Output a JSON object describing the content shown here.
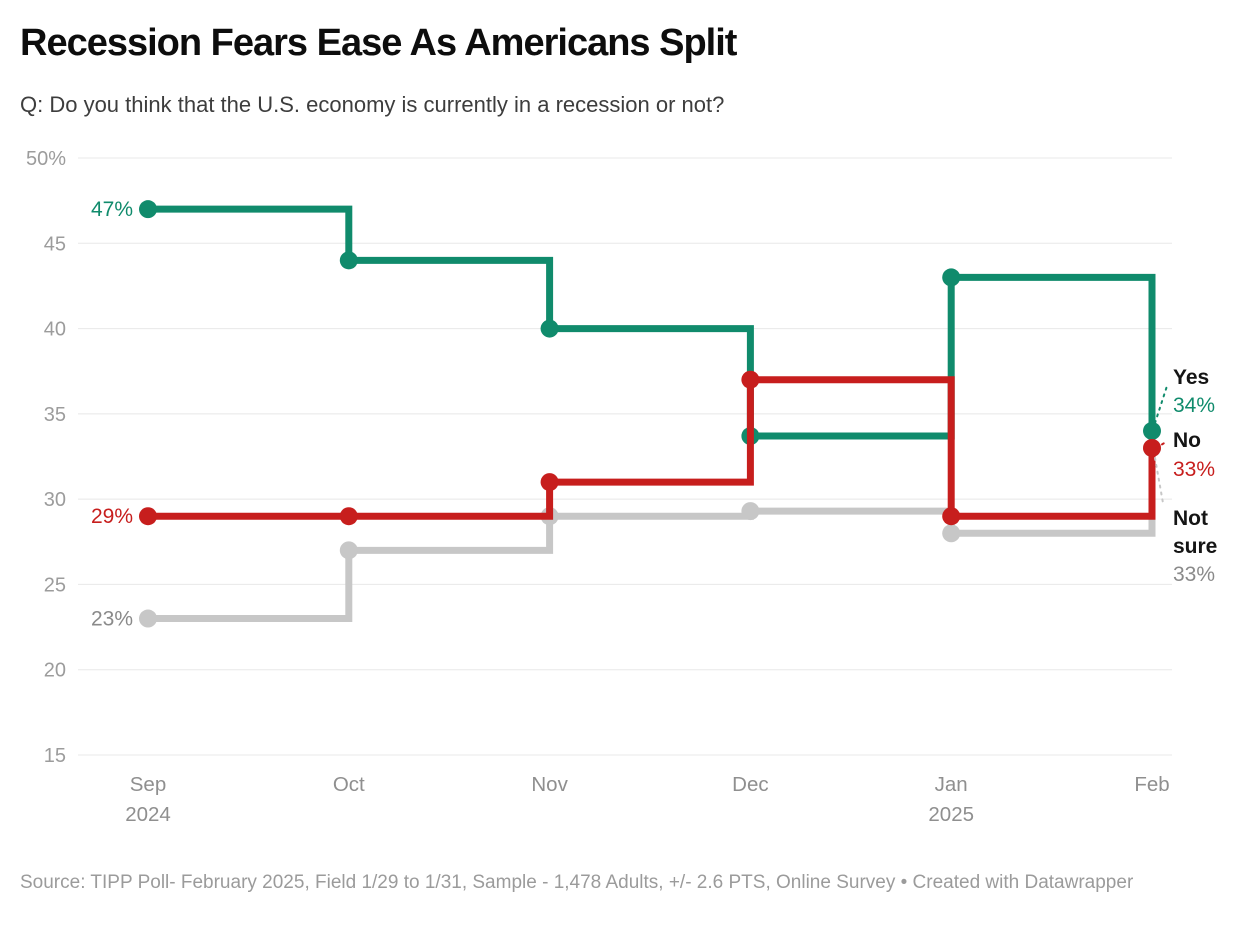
{
  "header": {
    "title": "Recession Fears Ease As Americans Split",
    "subtitle": "Q: Do you think that the U.S. economy is currently in a recession or not?"
  },
  "chart_data": {
    "type": "line",
    "line_shape": "step-after",
    "title": "Recession Fears Ease As Americans Split",
    "categories": [
      "Sep 2024",
      "Oct 2024",
      "Nov 2024",
      "Dec 2024",
      "Jan 2025",
      "Feb 2025"
    ],
    "x_axis": {
      "tick_months": [
        "Sep",
        "Oct",
        "Nov",
        "Dec",
        "Jan",
        "Feb"
      ],
      "tick_years": [
        "2024",
        "",
        "",
        "",
        "2025",
        ""
      ]
    },
    "y_axis": {
      "unit": "%",
      "range": [
        15,
        50
      ],
      "ticks": [
        50,
        45,
        40,
        35,
        30,
        25,
        20,
        15
      ],
      "tick_labels": [
        "50%",
        "45",
        "40",
        "35",
        "30",
        "25",
        "20",
        "15"
      ]
    },
    "grid": "horizontal",
    "grid_color": "#e8e8e8",
    "legend_position": "end-of-line-labels-right",
    "render_order": [
      2,
      0,
      1
    ],
    "series": [
      {
        "name": "Yes",
        "color": "#108b6c",
        "text_color": "#108b6c",
        "values": [
          47,
          44,
          40,
          33.7,
          43,
          34
        ],
        "first_label": "47%",
        "end_label_lines": [
          "Yes"
        ],
        "end_value": "34%"
      },
      {
        "name": "No",
        "color": "#c71e1d",
        "text_color": "#c71e1d",
        "values": [
          29,
          29,
          31,
          37,
          29,
          33
        ],
        "first_label": "29%",
        "end_label_lines": [
          "No"
        ],
        "end_value": "33%"
      },
      {
        "name": "Not sure",
        "color": "#c7c7c7",
        "text_color": "#8a8a8a",
        "values": [
          23,
          27,
          29,
          29.3,
          28,
          33
        ],
        "first_label": "23%",
        "end_label_lines": [
          "Not",
          "sure"
        ],
        "end_value": "33%"
      }
    ]
  },
  "footer": {
    "source": "Source: TIPP Poll- February 2025, Field 1/29 to 1/31, Sample - 1,478 Adults, +/- 2.6 PTS, Online Survey • Created with Datawrapper"
  }
}
